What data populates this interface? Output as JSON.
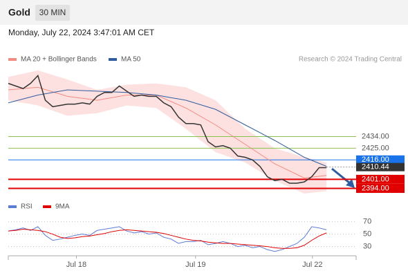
{
  "header": {
    "title": "Gold",
    "interval": "30 MIN",
    "date": "Monday, July 22, 2024 3:47:01 AM CET",
    "credit": "Research © 2024 Trading Central"
  },
  "chart_data": [
    {
      "type": "line",
      "xlim": [
        0,
        47
      ],
      "ylim": [
        2390,
        2486
      ],
      "x": [
        0,
        1,
        2,
        3,
        4,
        5,
        6,
        7,
        8,
        9,
        10,
        11,
        12,
        13,
        14,
        15,
        16,
        17,
        18,
        19,
        20,
        21,
        22,
        23,
        24,
        25,
        26,
        27,
        28,
        29,
        30,
        31,
        32,
        33,
        34,
        35,
        36,
        37,
        38,
        39,
        40,
        41,
        42,
        43
      ],
      "values": [
        2475,
        2473,
        2471,
        2475,
        2481,
        2462,
        2457,
        2458,
        2459,
        2459,
        2460,
        2459,
        2465,
        2468,
        2468,
        2473,
        2469,
        2465,
        2466,
        2465,
        2465,
        2460,
        2457,
        2449,
        2444,
        2444,
        2443,
        2430,
        2426,
        2427,
        2425,
        2419,
        2418,
        2416,
        2411,
        2403,
        2400,
        2401,
        2398,
        2398,
        2399,
        2403,
        2410,
        2410
      ],
      "color": "#333333",
      "bands": {
        "name": "MA 20 + Bollinger Bands",
        "color": "#f28b82",
        "fill": "#fde0e0",
        "x": [
          0,
          4,
          8,
          12,
          16,
          20,
          24,
          28,
          32,
          36,
          40,
          43
        ],
        "values": [
          2470,
          2472,
          2465,
          2462,
          2466,
          2466,
          2456,
          2443,
          2428,
          2413,
          2402,
          2404
        ],
        "upper": [
          2480,
          2485,
          2478,
          2470,
          2474,
          2475,
          2472,
          2462,
          2440,
          2425,
          2418,
          2414
        ],
        "lower": [
          2462,
          2458,
          2450,
          2452,
          2458,
          2456,
          2440,
          2422,
          2414,
          2400,
          2390,
          2392
        ]
      },
      "series": [
        {
          "name": "MA 50",
          "color": "#2f5c9e",
          "x": [
            0,
            4,
            8,
            12,
            16,
            20,
            24,
            28,
            32,
            36,
            40,
            43
          ],
          "values": [
            2460,
            2466,
            2470,
            2469,
            2468,
            2466,
            2462,
            2455,
            2443,
            2431,
            2418,
            2411
          ]
        }
      ],
      "levels": [
        {
          "value": 2434,
          "label": "2434.00",
          "color": "#8bc34a"
        },
        {
          "value": 2425,
          "label": "2425.00",
          "color": "#8bc34a"
        },
        {
          "value": 2416,
          "label": "2416.00",
          "color": "#1a73e8"
        },
        {
          "value": 2401,
          "label": "2401.00",
          "color": "#e00000"
        },
        {
          "value": 2394,
          "label": "2394.00",
          "color": "#e00000"
        }
      ],
      "last": 2410.44
    },
    {
      "type": "line",
      "xlim": [
        0,
        47
      ],
      "ylim": [
        15,
        82
      ],
      "yticks": [
        30,
        50,
        70
      ],
      "xticks": [
        {
          "value": 9.2,
          "label": "Jul 18"
        },
        {
          "value": 25.3,
          "label": "Jul 19"
        },
        {
          "value": 41.1,
          "label": "Jul 22"
        }
      ],
      "x": [
        0,
        1,
        2,
        3,
        4,
        5,
        6,
        7,
        8,
        9,
        10,
        11,
        12,
        13,
        14,
        15,
        16,
        17,
        18,
        19,
        20,
        21,
        22,
        23,
        24,
        25,
        26,
        27,
        28,
        29,
        30,
        31,
        32,
        33,
        34,
        35,
        36,
        37,
        38,
        39,
        40,
        41,
        42,
        43
      ],
      "series": [
        {
          "name": "RSI",
          "color": "#5b7bd5",
          "values": [
            55,
            57,
            60,
            56,
            62,
            48,
            40,
            42,
            45,
            48,
            50,
            48,
            56,
            58,
            60,
            62,
            55,
            52,
            54,
            50,
            52,
            45,
            42,
            35,
            38,
            38,
            40,
            33,
            35,
            38,
            35,
            30,
            32,
            28,
            30,
            25,
            22,
            25,
            30,
            35,
            45,
            62,
            60,
            57
          ]
        },
        {
          "name": "9MA",
          "color": "#e00000",
          "values": [
            55,
            56,
            58,
            57,
            56,
            54,
            50,
            45,
            43,
            44,
            46,
            47,
            49,
            51,
            54,
            56,
            57,
            56,
            55,
            54,
            53,
            51,
            48,
            45,
            42,
            40,
            39,
            37,
            36,
            35,
            35,
            34,
            33,
            32,
            31,
            30,
            28,
            27,
            27,
            28,
            32,
            40,
            47,
            52
          ]
        }
      ]
    }
  ]
}
